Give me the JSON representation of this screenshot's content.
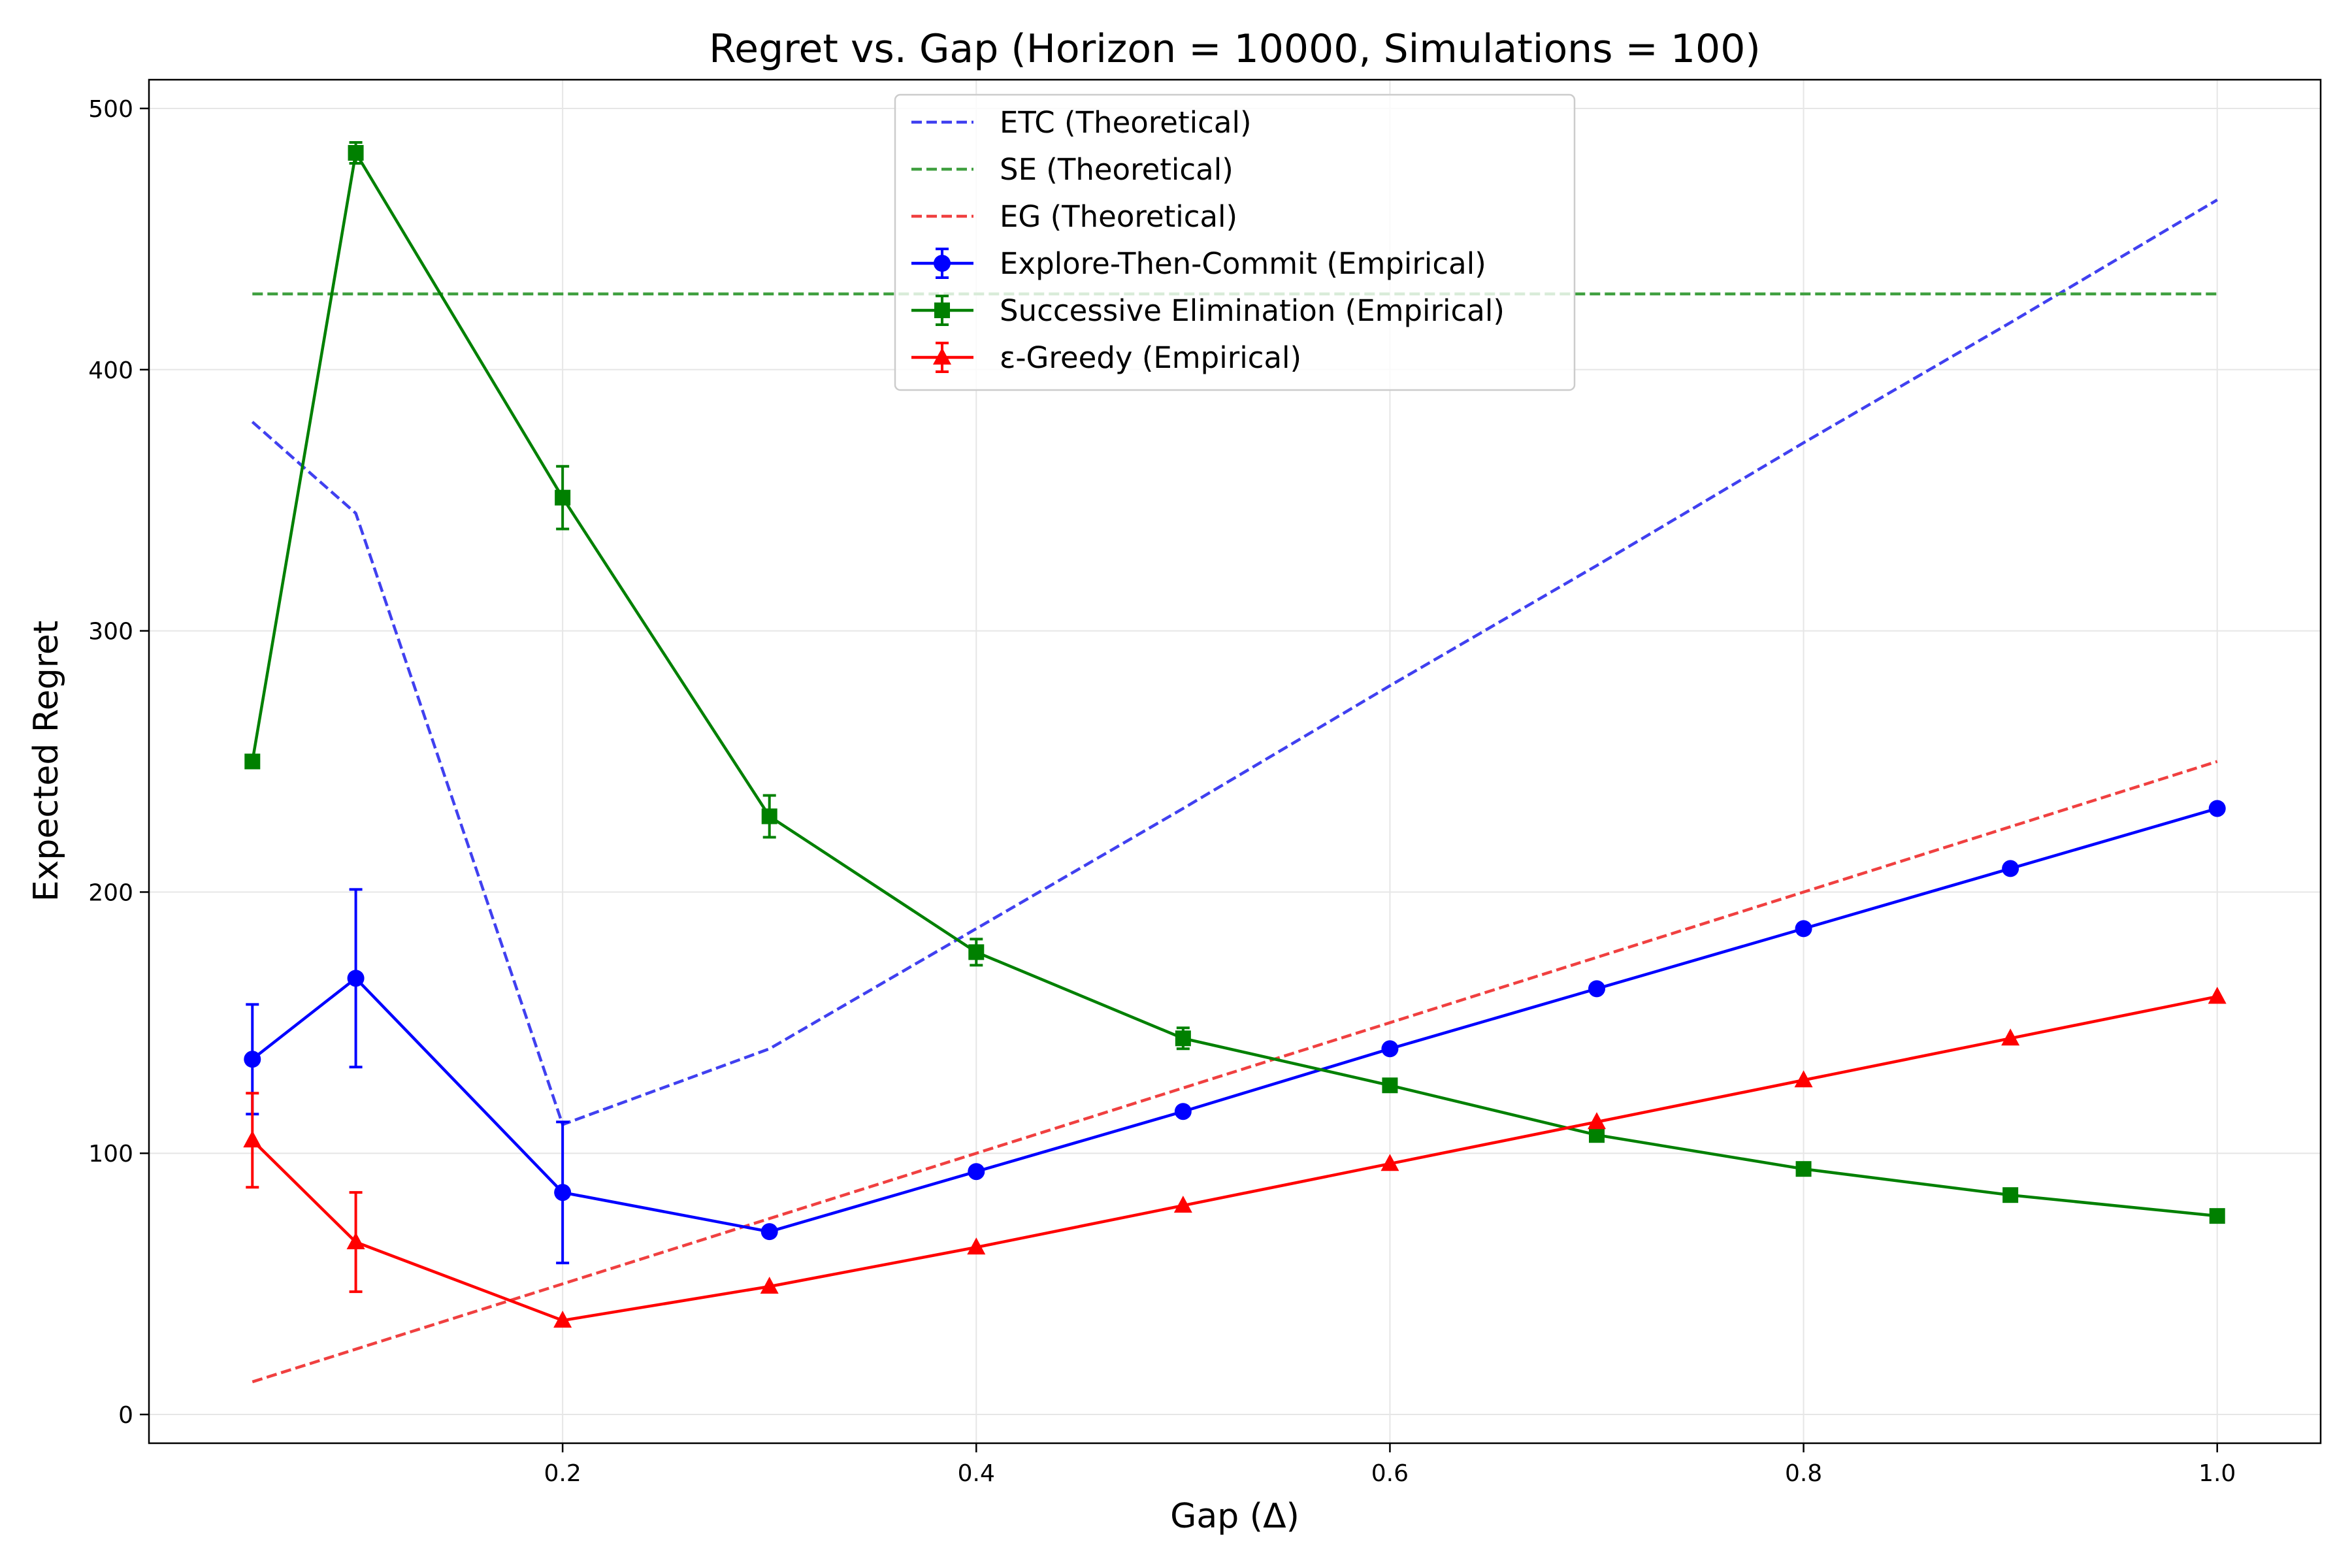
{
  "chart_data": {
    "type": "line",
    "title": "Regret vs. Gap (Horizon = 10000, Simulations = 100)",
    "xlabel": "Gap (Δ)",
    "ylabel": "Expected Regret",
    "xlim": [
      -0.0,
      1.05
    ],
    "ylim": [
      -11,
      511
    ],
    "grid": true,
    "legend_position": "top-center",
    "x_ticks": [
      0.2,
      0.4,
      0.6,
      0.8,
      1.0
    ],
    "x_tick_labels": [
      "0.2",
      "0.4",
      "0.6",
      "0.8",
      "1.0"
    ],
    "y_ticks": [
      0,
      100,
      200,
      300,
      400,
      500
    ],
    "y_tick_labels": [
      "0",
      "100",
      "200",
      "300",
      "400",
      "500"
    ],
    "x": [
      0.05,
      0.1,
      0.2,
      0.3,
      0.4,
      0.5,
      0.6,
      0.7,
      0.8,
      0.9,
      1.0
    ],
    "theoretical_series": [
      {
        "name": "ETC (Theoretical)",
        "color": "#4040f0",
        "style": "dashed",
        "values": [
          380,
          345,
          111,
          140,
          186,
          232,
          279,
          325,
          372,
          418,
          465
        ]
      },
      {
        "name": "SE (Theoretical)",
        "color": "#40a040",
        "style": "dashed",
        "values": [
          429,
          429,
          429,
          429,
          429,
          429,
          429,
          429,
          429,
          429,
          429
        ]
      },
      {
        "name": "EG (Theoretical)",
        "color": "#f04040",
        "style": "dashed",
        "values": [
          12.5,
          25,
          50,
          75,
          100,
          125,
          150,
          175,
          200,
          225,
          250
        ]
      }
    ],
    "empirical_series": [
      {
        "name": "Explore-Then-Commit (Empirical)",
        "color": "#0000ff",
        "marker": "circle",
        "values": [
          136,
          167,
          85,
          70,
          93,
          116,
          140,
          163,
          186,
          209,
          232
        ],
        "errors": [
          21,
          34,
          27,
          0,
          0,
          0,
          0,
          0,
          0,
          0,
          0
        ]
      },
      {
        "name": "Successive Elimination (Empirical)",
        "color": "#008000",
        "marker": "square",
        "values": [
          250,
          483,
          351,
          229,
          177,
          144,
          126,
          107,
          94,
          84,
          76
        ],
        "errors": [
          0,
          4,
          12,
          8,
          5,
          4,
          0,
          0,
          0,
          0,
          0
        ]
      },
      {
        "name": "ε-Greedy (Empirical)",
        "color": "#ff0000",
        "marker": "triangle",
        "values": [
          105,
          66,
          36,
          49,
          64,
          80,
          96,
          112,
          128,
          144,
          160
        ],
        "errors": [
          18,
          19,
          0,
          0,
          0,
          0,
          0,
          0,
          0,
          0,
          0
        ]
      }
    ]
  }
}
